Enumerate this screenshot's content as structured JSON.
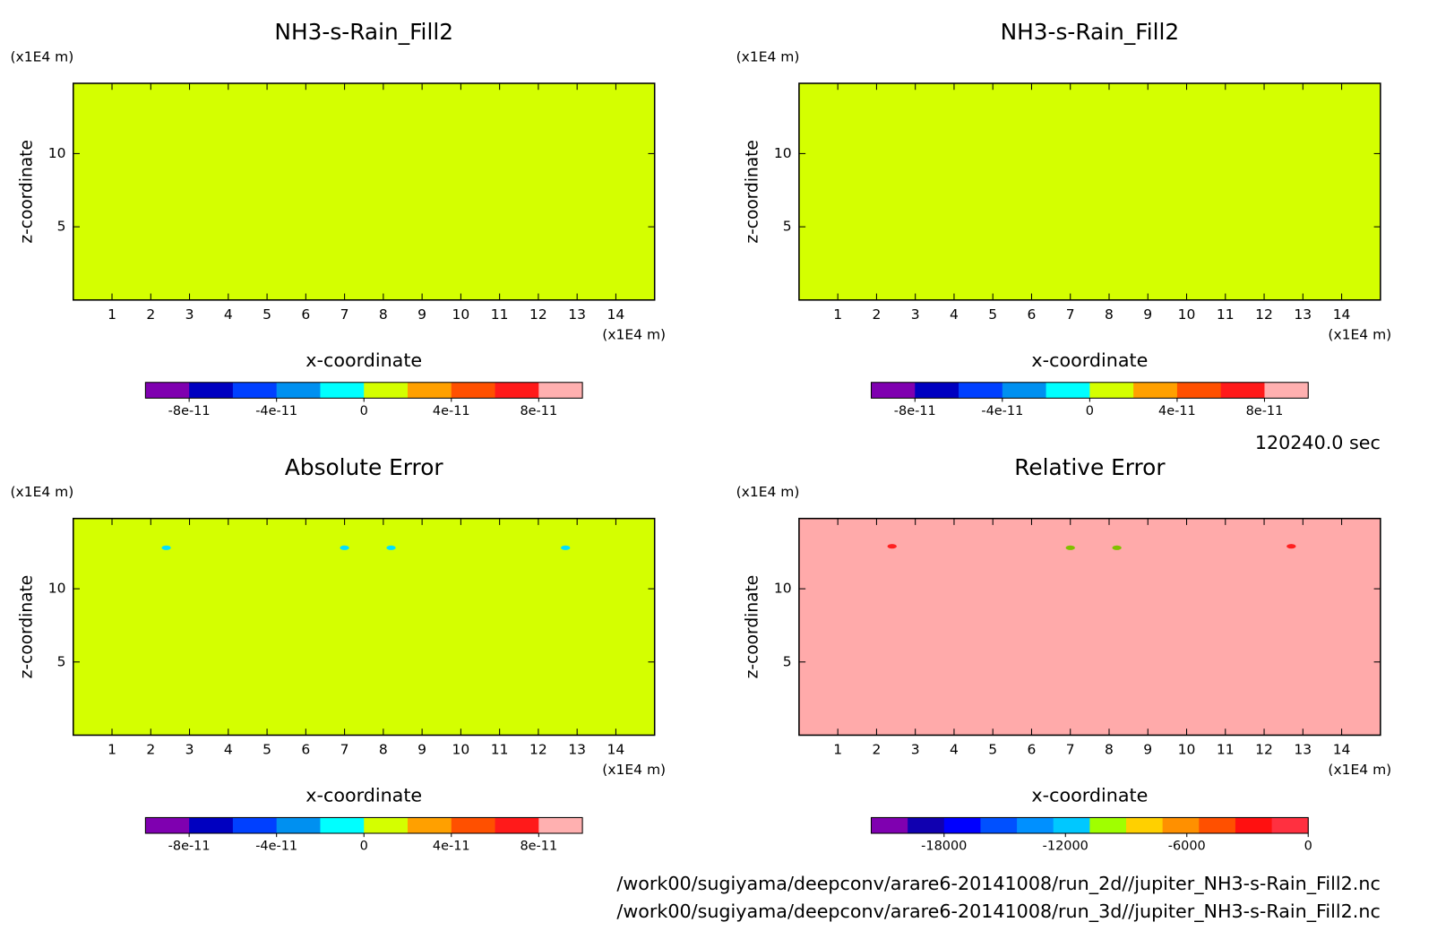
{
  "chart_data": [
    {
      "type": "contour",
      "title": "NH3-s-Rain_Fill2",
      "x_label": "x-coordinate",
      "y_label": "z-coordinate",
      "x_unit": "(x1E4 m)",
      "y_unit": "(x1E4 m)",
      "xlim": [
        0,
        15
      ],
      "xticks": [
        1,
        2,
        3,
        4,
        5,
        6,
        7,
        8,
        9,
        10,
        11,
        12,
        13,
        14
      ],
      "ylim": [
        0,
        14.8
      ],
      "yticks": [
        5,
        10
      ],
      "fill_color": "#d4ff00",
      "features": [],
      "colorbar": {
        "lim": [
          -1e-10,
          1e-10
        ],
        "colors": [
          "#7f00b0",
          "#0000c0",
          "#0040ff",
          "#0090f0",
          "#00ffff",
          "#d4ff00",
          "#ffa000",
          "#ff5000",
          "#ff1a1a",
          "#ffb0b0"
        ],
        "ticks": [
          -8e-11,
          -4e-11,
          0,
          4e-11,
          8e-11
        ]
      }
    },
    {
      "type": "contour",
      "title": "NH3-s-Rain_Fill2",
      "x_label": "x-coordinate",
      "y_label": "z-coordinate",
      "x_unit": "(x1E4 m)",
      "y_unit": "(x1E4 m)",
      "xlim": [
        0,
        15
      ],
      "xticks": [
        1,
        2,
        3,
        4,
        5,
        6,
        7,
        8,
        9,
        10,
        11,
        12,
        13,
        14
      ],
      "ylim": [
        0,
        14.8
      ],
      "yticks": [
        5,
        10
      ],
      "fill_color": "#d4ff00",
      "features": [],
      "colorbar": {
        "lim": [
          -1e-10,
          1e-10
        ],
        "colors": [
          "#7f00b0",
          "#0000c0",
          "#0040ff",
          "#0090f0",
          "#00ffff",
          "#d4ff00",
          "#ffa000",
          "#ff5000",
          "#ff1a1a",
          "#ffb0b0"
        ],
        "ticks": [
          -8e-11,
          -4e-11,
          0,
          4e-11,
          8e-11
        ]
      }
    },
    {
      "type": "contour",
      "title": "Absolute Error",
      "x_label": "x-coordinate",
      "y_label": "z-coordinate",
      "x_unit": "(x1E4 m)",
      "y_unit": "(x1E4 m)",
      "xlim": [
        0,
        15
      ],
      "xticks": [
        1,
        2,
        3,
        4,
        5,
        6,
        7,
        8,
        9,
        10,
        11,
        12,
        13,
        14
      ],
      "ylim": [
        0,
        14.8
      ],
      "yticks": [
        5,
        10
      ],
      "fill_color": "#d4ff00",
      "features": [
        {
          "x": 2.4,
          "z": 12.8,
          "color": "#00e0ff"
        },
        {
          "x": 7.0,
          "z": 12.8,
          "color": "#00e0ff"
        },
        {
          "x": 8.2,
          "z": 12.8,
          "color": "#00e0ff"
        },
        {
          "x": 12.7,
          "z": 12.8,
          "color": "#00e0ff"
        }
      ],
      "colorbar": {
        "lim": [
          -1e-10,
          1e-10
        ],
        "colors": [
          "#7f00b0",
          "#0000c0",
          "#0040ff",
          "#0090f0",
          "#00ffff",
          "#d4ff00",
          "#ffa000",
          "#ff5000",
          "#ff1a1a",
          "#ffb0b0"
        ],
        "ticks": [
          -8e-11,
          -4e-11,
          0,
          4e-11,
          8e-11
        ]
      }
    },
    {
      "type": "contour",
      "title": "Relative Error",
      "x_label": "x-coordinate",
      "y_label": "z-coordinate",
      "x_unit": "(x1E4 m)",
      "y_unit": "(x1E4 m)",
      "xlim": [
        0,
        15
      ],
      "xticks": [
        1,
        2,
        3,
        4,
        5,
        6,
        7,
        8,
        9,
        10,
        11,
        12,
        13,
        14
      ],
      "ylim": [
        0,
        14.8
      ],
      "yticks": [
        5,
        10
      ],
      "fill_color": "#ffaaaa",
      "features": [
        {
          "x": 2.4,
          "z": 12.9,
          "color": "#ff2020"
        },
        {
          "x": 7.0,
          "z": 12.8,
          "color": "#80c000"
        },
        {
          "x": 8.2,
          "z": 12.8,
          "color": "#80c000"
        },
        {
          "x": 12.7,
          "z": 12.9,
          "color": "#ff2020"
        }
      ],
      "colorbar": {
        "lim": [
          -21600,
          0
        ],
        "colors": [
          "#7f00b0",
          "#1000b0",
          "#0000ff",
          "#0050ff",
          "#0090ff",
          "#00c8ff",
          "#a0ff00",
          "#ffd000",
          "#ff9000",
          "#ff5000",
          "#ff1010",
          "#ff3040"
        ],
        "ticks": [
          -18000,
          -12000,
          -6000,
          0
        ]
      }
    }
  ],
  "time": "120240.0 sec",
  "files": [
    "/work00/sugiyama/deepconv/arare6-20141008/run_2d//jupiter_NH3-s-Rain_Fill2.nc",
    "/work00/sugiyama/deepconv/arare6-20141008/run_3d//jupiter_NH3-s-Rain_Fill2.nc"
  ]
}
